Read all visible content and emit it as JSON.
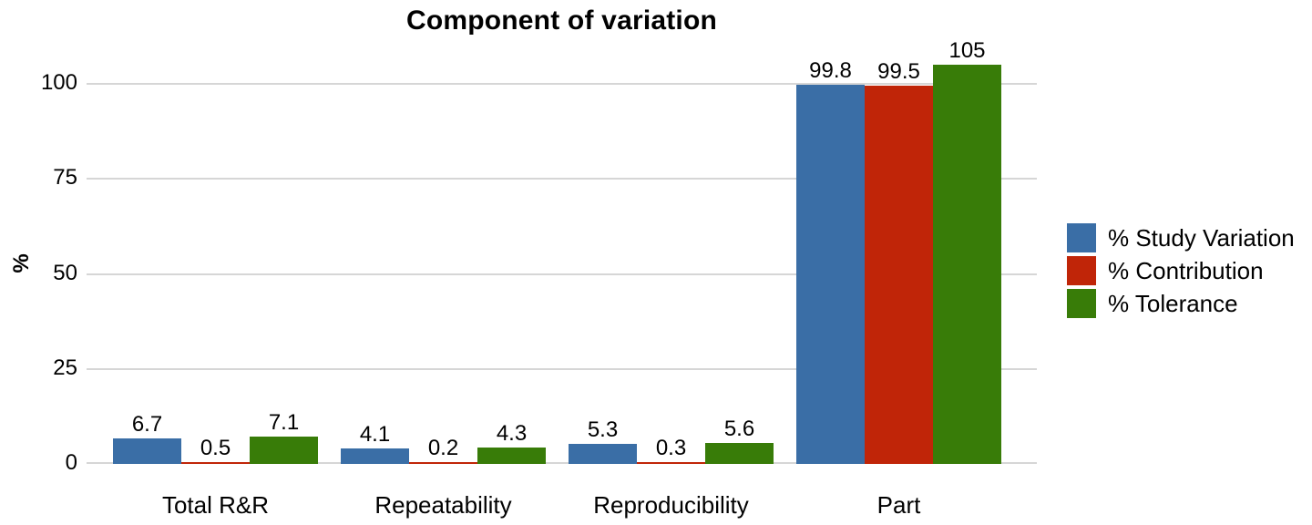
{
  "title": "Component of variation",
  "y_axis": {
    "label": "%"
  },
  "chart_data": {
    "type": "bar",
    "title": "Component of variation",
    "categories": [
      "Total R&R",
      "Repeatability",
      "Reproducibility",
      "Part"
    ],
    "series": [
      {
        "name": "% Study Variation",
        "color": "#3a6ea6",
        "values": [
          6.7,
          4.1,
          5.3,
          99.8
        ],
        "labels": [
          "6.7",
          "4.1",
          "5.3",
          "99.8"
        ]
      },
      {
        "name": "% Contribution",
        "color": "#c02508",
        "values": [
          0.5,
          0.2,
          0.3,
          99.5
        ],
        "labels": [
          "0.5",
          "0.2",
          "0.3",
          "99.5"
        ]
      },
      {
        "name": "% Tolerance",
        "color": "#387c08",
        "values": [
          7.1,
          4.3,
          5.6,
          105
        ],
        "labels": [
          "7.1",
          "4.3",
          "5.6",
          "105"
        ]
      }
    ],
    "xlabel": "",
    "ylabel": "%",
    "yticks": [
      0,
      25,
      50,
      75,
      100
    ],
    "ylim": [
      0,
      110
    ],
    "grid": true,
    "gridline_color": "#d6d6d6",
    "legend_position": "right",
    "background_color": "#ffffff"
  }
}
